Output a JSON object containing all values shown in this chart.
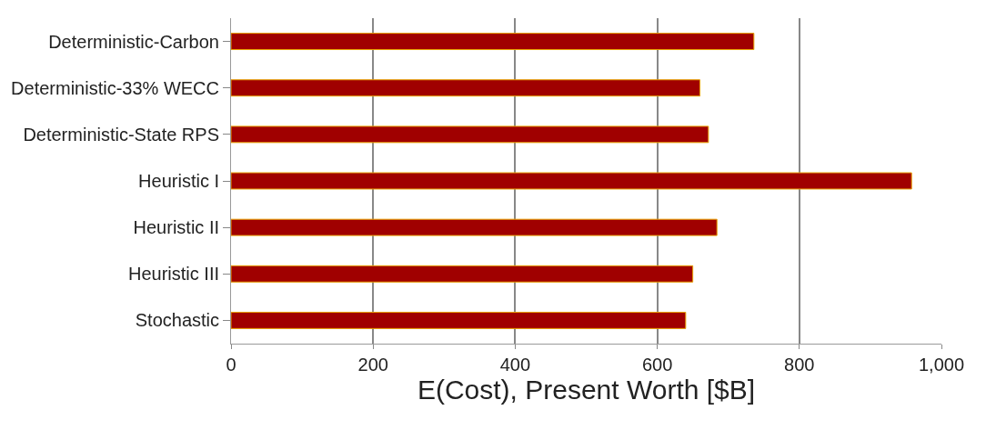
{
  "chart_data": {
    "type": "bar",
    "orientation": "horizontal",
    "xlabel": "E(Cost), Present Worth [$B]",
    "categories": [
      "Deterministic-Carbon",
      "Deterministic-33% WECC",
      "Deterministic-State RPS",
      "Heuristic I",
      "Heuristic II",
      "Heuristic III",
      "Stochastic"
    ],
    "values": [
      736,
      660,
      672,
      958,
      684,
      650,
      640
    ],
    "color": "#a00000",
    "xlim": [
      0,
      1000
    ],
    "xticks": [
      0,
      200,
      400,
      600,
      800,
      {
        "value": 1000,
        "label": "1,000"
      }
    ],
    "grid": "x"
  }
}
